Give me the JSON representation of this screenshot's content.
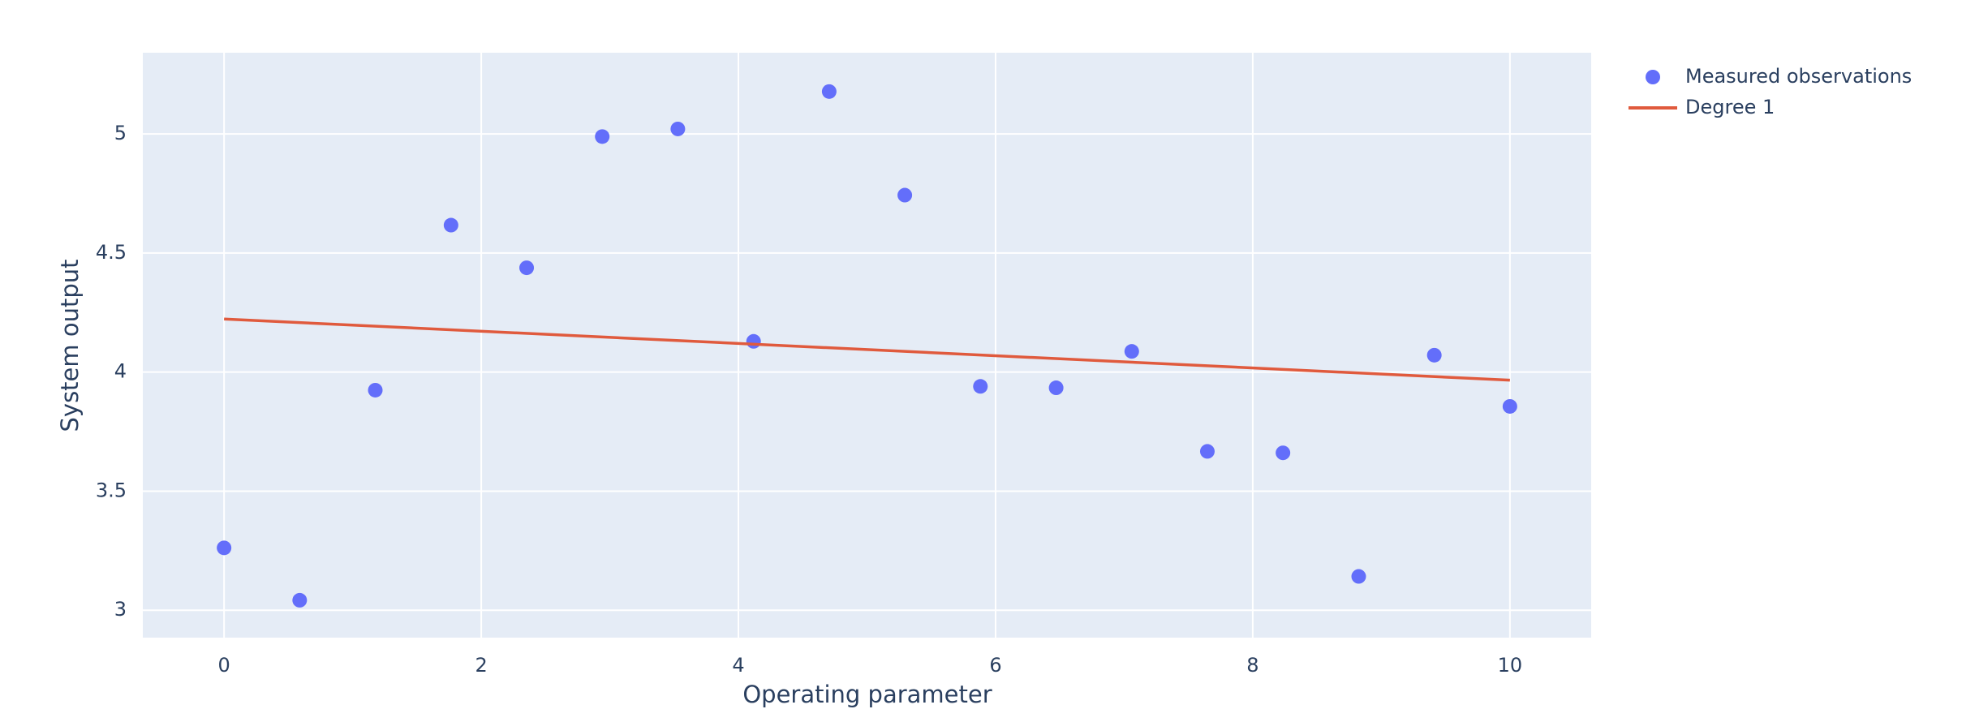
{
  "chart_data": {
    "type": "scatter",
    "x_label": "Operating parameter",
    "y_label": "System output",
    "series": [
      {
        "name": "Measured observations",
        "mode": "markers",
        "color": "#636efa",
        "x": [
          0,
          0.588,
          1.176,
          1.765,
          2.353,
          2.941,
          3.529,
          4.118,
          4.706,
          5.294,
          5.882,
          6.471,
          7.059,
          7.647,
          8.235,
          8.824,
          9.412,
          10
        ],
        "values": [
          3.262,
          3.042,
          3.924,
          4.617,
          4.438,
          4.989,
          5.021,
          4.129,
          5.178,
          4.743,
          3.94,
          3.934,
          4.087,
          3.667,
          3.661,
          3.142,
          4.071,
          3.856
        ]
      },
      {
        "name": "Degree 1",
        "mode": "lines",
        "color": "#e05a3d",
        "x": [
          0,
          10
        ],
        "values": [
          4.223,
          3.966
        ]
      }
    ],
    "xlim": [
      -0.632,
      10.632
    ],
    "xticks": [
      0,
      2,
      4,
      6,
      8,
      10
    ],
    "ylim": [
      2.885,
      5.341
    ],
    "yticks": [
      3,
      3.5,
      4,
      4.5,
      5
    ],
    "grid": true,
    "legend": "outside-right"
  }
}
